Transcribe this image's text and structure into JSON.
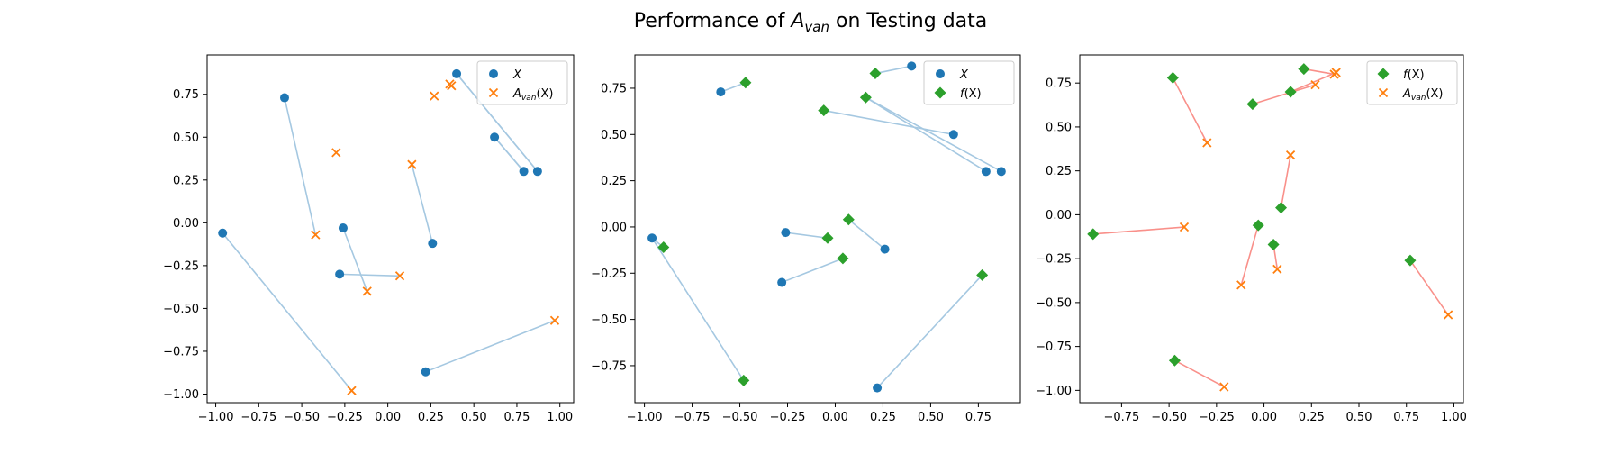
{
  "figure": {
    "title_prefix": "Performance of ",
    "title_symbol_main": "A",
    "title_symbol_sub": "van",
    "title_suffix": " on Testing data"
  },
  "colors": {
    "blue": "#1f77b4",
    "orange": "#ff7f0e",
    "green": "#2ca02c",
    "blue_line": "#a5c8e1",
    "red_line": "#f9908a"
  },
  "chart_data": [
    {
      "type": "scatter",
      "title": "",
      "xlim": [
        -1.05,
        1.08
      ],
      "ylim": [
        -1.05,
        0.98
      ],
      "xticks": [
        -1.0,
        -0.75,
        -0.5,
        -0.25,
        0.0,
        0.25,
        0.5,
        0.75,
        1.0
      ],
      "yticks": [
        -1.0,
        -0.75,
        -0.5,
        -0.25,
        0.0,
        0.25,
        0.5,
        0.75
      ],
      "xtick_labels": [
        "−1.00",
        "−0.75",
        "−0.50",
        "−0.25",
        "0.00",
        "0.25",
        "0.50",
        "0.75",
        "1.00"
      ],
      "ytick_labels": [
        "−1.00",
        "−0.75",
        "−0.50",
        "−0.25",
        "0.00",
        "0.25",
        "0.50",
        "0.75"
      ],
      "legend_loc": "upper right",
      "connector_color": "blue_line",
      "series": [
        {
          "name": "X",
          "legend_main": "X",
          "legend_sub": "",
          "legend_tail": "",
          "marker": "circle",
          "color": "blue",
          "points": [
            [
              0.4,
              0.87
            ],
            [
              0.62,
              0.5
            ],
            [
              0.79,
              0.3
            ],
            [
              0.87,
              0.3
            ],
            [
              -0.6,
              0.73
            ],
            [
              -0.96,
              -0.06
            ],
            [
              -0.26,
              -0.03
            ],
            [
              -0.28,
              -0.3
            ],
            [
              0.26,
              -0.12
            ],
            [
              0.22,
              -0.87
            ]
          ]
        },
        {
          "name": "Avan(X)",
          "legend_main": "A",
          "legend_sub": "van",
          "legend_tail": "(X)",
          "marker": "x",
          "color": "orange",
          "points": [
            [
              0.36,
              0.81
            ],
            [
              0.37,
              0.8
            ],
            [
              0.27,
              0.74
            ],
            [
              -0.3,
              0.41
            ],
            [
              -0.42,
              -0.07
            ],
            [
              0.14,
              0.34
            ],
            [
              -0.12,
              -0.4
            ],
            [
              0.07,
              -0.31
            ],
            [
              -0.21,
              -0.98
            ],
            [
              0.97,
              -0.57
            ]
          ]
        }
      ],
      "connections": [
        [
          0,
          0,
          0,
          3
        ],
        [
          0,
          1,
          0,
          2
        ],
        [
          0,
          2,
          0,
          1
        ],
        [
          0,
          3,
          0,
          0
        ],
        [
          0,
          4,
          1,
          4
        ],
        [
          0,
          5,
          1,
          8
        ],
        [
          0,
          6,
          1,
          6
        ],
        [
          0,
          7,
          1,
          7
        ],
        [
          0,
          8,
          1,
          5
        ],
        [
          0,
          9,
          1,
          9
        ]
      ]
    },
    {
      "type": "scatter",
      "title": "",
      "xlim": [
        -1.05,
        0.97
      ],
      "ylim": [
        -0.95,
        0.93
      ],
      "xticks": [
        -1.0,
        -0.75,
        -0.5,
        -0.25,
        0.0,
        0.25,
        0.5,
        0.75
      ],
      "yticks": [
        -0.75,
        -0.5,
        -0.25,
        0.0,
        0.25,
        0.5,
        0.75
      ],
      "xtick_labels": [
        "−1.00",
        "−0.75",
        "−0.50",
        "−0.25",
        "0.00",
        "0.25",
        "0.50",
        "0.75"
      ],
      "ytick_labels": [
        "−0.75",
        "−0.50",
        "−0.25",
        "0.00",
        "0.25",
        "0.50",
        "0.75"
      ],
      "legend_loc": "upper right",
      "connector_color": "blue_line",
      "series": [
        {
          "name": "X",
          "legend_main": "X",
          "legend_sub": "",
          "legend_tail": "",
          "marker": "circle",
          "color": "blue",
          "points": [
            [
              0.4,
              0.87
            ],
            [
              0.62,
              0.5
            ],
            [
              0.79,
              0.3
            ],
            [
              0.87,
              0.3
            ],
            [
              -0.6,
              0.73
            ],
            [
              -0.96,
              -0.06
            ],
            [
              -0.26,
              -0.03
            ],
            [
              -0.28,
              -0.3
            ],
            [
              0.26,
              -0.12
            ],
            [
              0.22,
              -0.87
            ]
          ]
        },
        {
          "name": "f(X)",
          "legend_main": "f",
          "legend_sub": "",
          "legend_tail": "(X)",
          "marker": "diamond",
          "color": "green",
          "points": [
            [
              -0.47,
              0.78
            ],
            [
              0.21,
              0.83
            ],
            [
              0.16,
              0.7
            ],
            [
              -0.06,
              0.63
            ],
            [
              -0.9,
              -0.11
            ],
            [
              -0.48,
              -0.83
            ],
            [
              -0.04,
              -0.06
            ],
            [
              0.04,
              -0.17
            ],
            [
              0.07,
              0.04
            ],
            [
              0.77,
              -0.26
            ]
          ]
        }
      ],
      "connections": [
        [
          0,
          0,
          1,
          1
        ],
        [
          0,
          1,
          1,
          3
        ],
        [
          0,
          2,
          1,
          2
        ],
        [
          0,
          3,
          1,
          2
        ],
        [
          0,
          4,
          1,
          0
        ],
        [
          0,
          5,
          1,
          4
        ],
        [
          0,
          5,
          1,
          5
        ],
        [
          0,
          6,
          1,
          6
        ],
        [
          0,
          7,
          1,
          7
        ],
        [
          0,
          8,
          1,
          8
        ],
        [
          0,
          9,
          1,
          9
        ]
      ]
    },
    {
      "type": "scatter",
      "title": "",
      "xlim": [
        -0.97,
        1.05
      ],
      "ylim": [
        -1.07,
        0.91
      ],
      "xticks": [
        -0.75,
        -0.5,
        -0.25,
        0.0,
        0.25,
        0.5,
        0.75,
        1.0
      ],
      "yticks": [
        -1.0,
        -0.75,
        -0.5,
        -0.25,
        0.0,
        0.25,
        0.5,
        0.75
      ],
      "xtick_labels": [
        "−0.75",
        "−0.50",
        "−0.25",
        "0.00",
        "0.25",
        "0.50",
        "0.75",
        "1.00"
      ],
      "ytick_labels": [
        "−1.00",
        "−0.75",
        "−0.50",
        "−0.25",
        "0.00",
        "0.25",
        "0.50",
        "0.75"
      ],
      "legend_loc": "upper right",
      "connector_color": "red_line",
      "series": [
        {
          "name": "f(X)",
          "legend_main": "f",
          "legend_sub": "",
          "legend_tail": "(X)",
          "marker": "diamond",
          "color": "green",
          "points": [
            [
              0.21,
              0.83
            ],
            [
              0.14,
              0.7
            ],
            [
              -0.06,
              0.63
            ],
            [
              -0.48,
              0.78
            ],
            [
              -0.9,
              -0.11
            ],
            [
              0.09,
              0.04
            ],
            [
              -0.03,
              -0.06
            ],
            [
              0.05,
              -0.17
            ],
            [
              0.77,
              -0.26
            ],
            [
              -0.47,
              -0.83
            ]
          ]
        },
        {
          "name": "Avan(X)",
          "legend_main": "A",
          "legend_sub": "van",
          "legend_tail": "(X)",
          "marker": "x",
          "color": "orange",
          "points": [
            [
              0.37,
              0.8
            ],
            [
              0.38,
              0.81
            ],
            [
              0.27,
              0.74
            ],
            [
              -0.3,
              0.41
            ],
            [
              0.14,
              0.34
            ],
            [
              -0.42,
              -0.07
            ],
            [
              -0.12,
              -0.4
            ],
            [
              0.07,
              -0.31
            ],
            [
              0.97,
              -0.57
            ],
            [
              -0.21,
              -0.98
            ]
          ]
        }
      ],
      "connections": [
        [
          0,
          0,
          1,
          0
        ],
        [
          0,
          1,
          1,
          1
        ],
        [
          0,
          2,
          1,
          2
        ],
        [
          0,
          3,
          1,
          3
        ],
        [
          0,
          4,
          1,
          5
        ],
        [
          0,
          5,
          1,
          4
        ],
        [
          0,
          6,
          1,
          6
        ],
        [
          0,
          7,
          1,
          7
        ],
        [
          0,
          8,
          1,
          8
        ],
        [
          0,
          9,
          1,
          9
        ]
      ]
    }
  ]
}
